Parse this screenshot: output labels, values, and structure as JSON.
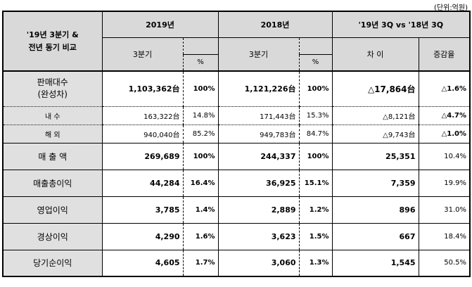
{
  "unit": "(단위:억원)",
  "header": {
    "compare_label_1": "'19년 3분기 &",
    "compare_label_2": "전년 동기 비교",
    "y2019": "2019년",
    "y2018": "2018년",
    "vs": "'19년 3Q vs '18년 3Q",
    "q3_2019": "3분기",
    "q3_2018": "3분기",
    "pct": "%",
    "diff": "차 이",
    "rate": "증감율"
  },
  "sales": {
    "label_1": "판매대수",
    "label_2": "(완성차)",
    "v2019": "1,103,362台",
    "p2019": "100%",
    "v2018": "1,121,226台",
    "p2018": "100%",
    "diff": "△17,864台",
    "rate": "△1.6%"
  },
  "domestic": {
    "label": "내 수",
    "v2019": "163,322台",
    "p2019": "14.8%",
    "v2018": "171,443台",
    "p2018": "15.3%",
    "diff": "△8,121台",
    "rate": "△4.7%"
  },
  "overseas": {
    "label": "해 외",
    "v2019": "940,040台",
    "p2019": "85.2%",
    "v2018": "949,783台",
    "p2018": "84.7%",
    "diff": "△9,743台",
    "rate": "△1.0%"
  },
  "rows": [
    {
      "label": "매 출 액",
      "v2019": "269,689",
      "p2019": "100%",
      "v2018": "244,337",
      "p2018": "100%",
      "diff": "25,351",
      "rate": "10.4%"
    },
    {
      "label": "매출총이익",
      "v2019": "44,284",
      "p2019": "16.4%",
      "v2018": "36,925",
      "p2018": "15.1%",
      "diff": "7,359",
      "rate": "19.9%"
    },
    {
      "label": "영업이익",
      "v2019": "3,785",
      "p2019": "1.4%",
      "v2018": "2,889",
      "p2018": "1.2%",
      "diff": "896",
      "rate": "31.0%"
    },
    {
      "label": "경상이익",
      "v2019": "4,290",
      "p2019": "1.6%",
      "v2018": "3,623",
      "p2018": "1.5%",
      "diff": "667",
      "rate": "18.4%"
    },
    {
      "label": "당기순이익",
      "v2019": "4,605",
      "p2019": "1.7%",
      "v2018": "3,060",
      "p2018": "1.3%",
      "diff": "1,545",
      "rate": "50.5%"
    }
  ]
}
